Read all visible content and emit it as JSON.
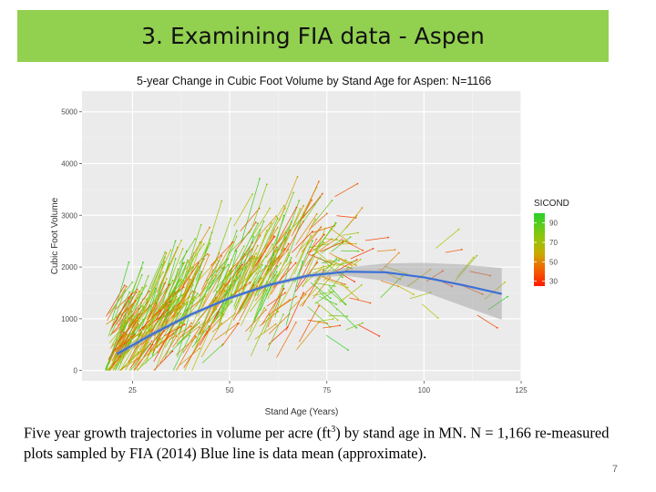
{
  "slide": {
    "title": "3. Examining FIA data - Aspen",
    "caption_part1": "Five year growth trajectories in volume per acre (ft",
    "caption_sup": "3",
    "caption_part2": ") by stand age in MN.  N = 1,166 re-measured plots sampled by FIA (2014)  Blue line is data mean (approximate).",
    "page_number": "7"
  },
  "chart_data": {
    "type": "line",
    "title": "5-year Change in Cubic Foot Volume by Stand Age for Aspen: N=1166",
    "xlabel": "Stand Age (Years)",
    "ylabel": "Cubic Foot Volume",
    "xlim": [
      12,
      125
    ],
    "ylim": [
      -200,
      5400
    ],
    "xticks": [
      25,
      50,
      75,
      100,
      125
    ],
    "yticks": [
      0,
      1000,
      2000,
      3000,
      4000,
      5000
    ],
    "grid": true,
    "background": "#ebebeb",
    "legend": {
      "title": "SICOND",
      "placement": "right",
      "labels": [
        "90",
        "70",
        "50",
        "30"
      ],
      "values": [
        90,
        70,
        50,
        30
      ],
      "range": [
        25,
        100
      ],
      "colors": [
        "#29d12b",
        "#b9c200",
        "#ef6a00",
        "#ff1a00"
      ]
    },
    "mean_line": {
      "name": "data mean (approximate)",
      "color": "#3b6fd6",
      "x": [
        21,
        30,
        40,
        50,
        60,
        70,
        80,
        90,
        100,
        110,
        120
      ],
      "y": [
        320,
        700,
        1080,
        1400,
        1650,
        1830,
        1910,
        1900,
        1800,
        1650,
        1480
      ],
      "ci_lower": [
        250,
        650,
        1040,
        1370,
        1610,
        1790,
        1830,
        1730,
        1520,
        1250,
        980
      ],
      "ci_upper": [
        390,
        750,
        1120,
        1430,
        1690,
        1870,
        1990,
        2070,
        2080,
        2050,
        1980
      ]
    },
    "n_trajectories": 1166,
    "trajectories_note": "each plot drawn as a 5-year segment (age, volume) to (age+5, volume+growth), colored by SICOND"
  }
}
